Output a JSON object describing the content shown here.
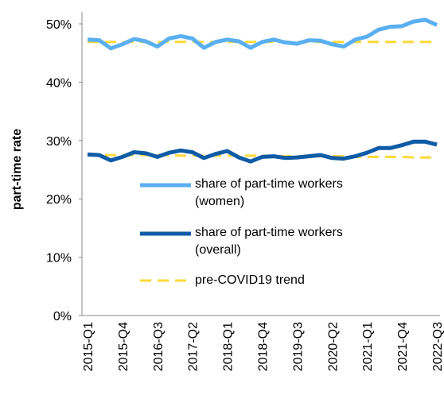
{
  "chart_data": {
    "type": "line",
    "ylabel": "part-time rate",
    "categories": [
      "2015-Q1",
      null,
      null,
      "2015-Q4",
      null,
      null,
      "2016-Q3",
      null,
      null,
      "2017-Q2",
      null,
      null,
      "2018-Q1",
      null,
      null,
      "2018-Q4",
      null,
      null,
      "2019-Q3",
      null,
      null,
      "2020-Q2",
      null,
      null,
      "2021-Q1",
      null,
      null,
      "2021-Q4",
      null,
      null,
      "2022-Q3"
    ],
    "series": [
      {
        "name": "share of part-time workers (women)",
        "color": "#5aaff0",
        "values": [
          47.3,
          47.2,
          45.8,
          46.5,
          47.4,
          47.0,
          46.1,
          47.5,
          47.9,
          47.5,
          45.9,
          46.9,
          47.3,
          47.0,
          45.9,
          46.9,
          47.3,
          46.8,
          46.6,
          47.2,
          47.1,
          46.5,
          46.1,
          47.3,
          47.8,
          49.0,
          49.5,
          49.6,
          50.4,
          50.7,
          49.8
        ]
      },
      {
        "name": "share of part-time workers (overall)",
        "color": "#0f5ba6",
        "values": [
          27.6,
          27.5,
          26.6,
          27.2,
          28.0,
          27.8,
          27.2,
          27.9,
          28.3,
          28.0,
          27.0,
          27.7,
          28.2,
          27.1,
          26.4,
          27.2,
          27.3,
          27.0,
          27.1,
          27.3,
          27.5,
          27.0,
          26.9,
          27.3,
          27.9,
          28.7,
          28.7,
          29.2,
          29.8,
          29.8,
          29.3
        ]
      }
    ],
    "trend": {
      "name": "pre-COVID19 trend",
      "color": "#fcd93a",
      "dashed": true,
      "values": [
        [
          46.9,
          46.9,
          46.9,
          46.9,
          46.9,
          46.9,
          46.9,
          46.9,
          46.9,
          46.9,
          46.9,
          46.9,
          46.9,
          46.9,
          46.9,
          46.9,
          46.9,
          46.9,
          46.9,
          46.9,
          46.9,
          46.9,
          46.9,
          46.9,
          46.9,
          46.9,
          46.9,
          46.9,
          46.9,
          46.9,
          46.9
        ],
        [
          27.5,
          27.5,
          27.5,
          27.5,
          27.5,
          27.5,
          27.5,
          27.5,
          27.4,
          27.4,
          27.4,
          27.4,
          27.4,
          27.4,
          27.4,
          27.4,
          27.3,
          27.3,
          27.3,
          27.3,
          27.3,
          27.3,
          27.3,
          27.2,
          27.2,
          27.2,
          27.2,
          27.2,
          27.1,
          27.1,
          27.1
        ]
      ]
    },
    "ylim": [
      0,
      50
    ],
    "yticks": [
      {
        "value": 0,
        "label": "0%"
      },
      {
        "value": 10,
        "label": "10%"
      },
      {
        "value": 20,
        "label": "20%"
      },
      {
        "value": 30,
        "label": "30%"
      },
      {
        "value": 40,
        "label": "40%"
      },
      {
        "value": 50,
        "label": "50%"
      }
    ],
    "grid": false
  }
}
